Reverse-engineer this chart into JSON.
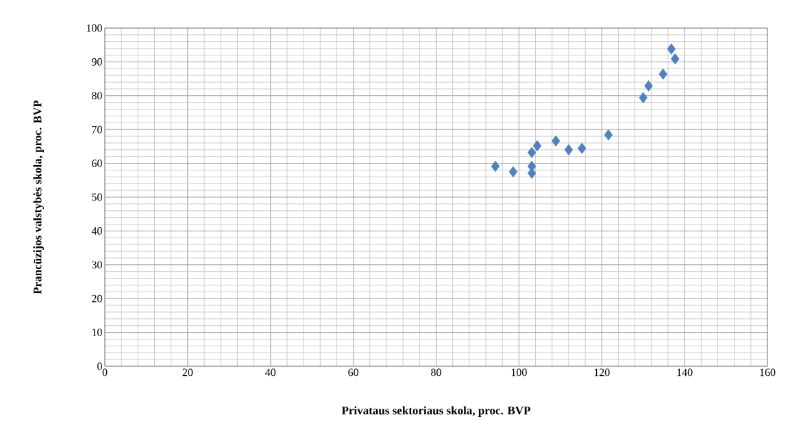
{
  "chart_data": {
    "type": "scatter",
    "xlabel": "Privataus sektoriaus skola, proc. BVP",
    "ylabel": "Prancūzijos valstybės skola, proc. BVP",
    "x": [
      94.3,
      98.6,
      103.1,
      103.1,
      103.1,
      104.4,
      108.9,
      112.0,
      115.2,
      121.6,
      130.0,
      131.3,
      134.8,
      136.8,
      137.7
    ],
    "values": [
      59.1,
      57.5,
      59.1,
      57.1,
      63.2,
      65.2,
      66.6,
      64.0,
      64.4,
      68.4,
      79.4,
      82.9,
      86.4,
      93.8,
      90.9
    ],
    "color": "#4f81bd",
    "marker": "diamond",
    "grid": true,
    "xlim": [
      0,
      160
    ],
    "xticks": [
      0,
      20,
      40,
      60,
      80,
      100,
      120,
      140,
      160
    ],
    "ylim": [
      0,
      100
    ],
    "yticks": [
      0,
      10,
      20,
      30,
      40,
      50,
      60,
      70,
      80,
      90,
      100
    ]
  }
}
